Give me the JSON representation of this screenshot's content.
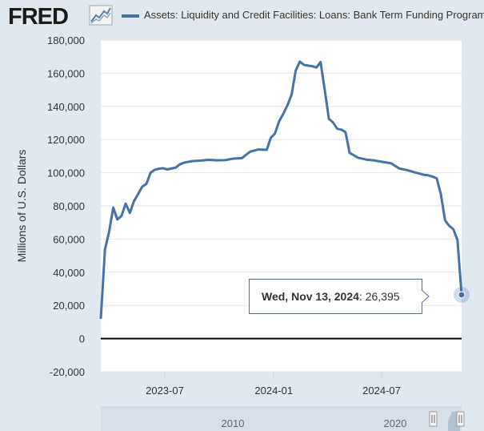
{
  "header": {
    "logo_text": "FRED",
    "logo_icon": "line-chart-icon",
    "series_label": "Assets: Liquidity and Credit Facilities: Loans: Bank Term Funding Program"
  },
  "tooltip": {
    "date": "Wed, Nov 13, 2024",
    "value": "26,395"
  },
  "navigator": {
    "tick_labels": [
      "2010",
      "2020"
    ],
    "handle_icon": "range-handle-icon"
  },
  "colors": {
    "series": "#4572a7",
    "background": "#e1e9f0",
    "plot_background": "#ffffff"
  },
  "chart_data": {
    "type": "line",
    "title": "",
    "xlabel": "",
    "ylabel": "Millions of U.S. Dollars",
    "ylim": [
      -20000,
      180000
    ],
    "yticks": [
      -20000,
      0,
      20000,
      40000,
      60000,
      80000,
      100000,
      120000,
      140000,
      160000,
      180000
    ],
    "ytick_labels": [
      "-20,000",
      "0",
      "20,000",
      "40,000",
      "60,000",
      "80,000",
      "100,000",
      "120,000",
      "140,000",
      "160,000",
      "180,000"
    ],
    "xlim": [
      "2023-03-15",
      "2024-11-13"
    ],
    "xticks": [
      "2023-07-01",
      "2024-01-01",
      "2024-07-01"
    ],
    "xtick_labels": [
      "2023-07",
      "2024-01",
      "2024-07"
    ],
    "grid": true,
    "legend": "top",
    "series": [
      {
        "name": "Assets: Liquidity and Credit Facilities: Loans: Bank Term Funding Program",
        "x": [
          "2023-03-15",
          "2023-03-22",
          "2023-03-29",
          "2023-04-05",
          "2023-04-12",
          "2023-04-19",
          "2023-04-26",
          "2023-05-03",
          "2023-05-10",
          "2023-05-17",
          "2023-05-24",
          "2023-05-31",
          "2023-06-07",
          "2023-06-14",
          "2023-06-21",
          "2023-06-28",
          "2023-07-05",
          "2023-07-12",
          "2023-07-19",
          "2023-07-26",
          "2023-08-02",
          "2023-08-16",
          "2023-08-30",
          "2023-09-13",
          "2023-09-27",
          "2023-10-11",
          "2023-10-25",
          "2023-11-08",
          "2023-11-22",
          "2023-12-06",
          "2023-12-20",
          "2023-12-27",
          "2024-01-03",
          "2024-01-10",
          "2024-01-17",
          "2024-01-24",
          "2024-01-31",
          "2024-02-07",
          "2024-02-14",
          "2024-02-21",
          "2024-02-28",
          "2024-03-06",
          "2024-03-13",
          "2024-03-20",
          "2024-03-27",
          "2024-04-03",
          "2024-04-10",
          "2024-04-17",
          "2024-04-24",
          "2024-05-01",
          "2024-05-08",
          "2024-05-22",
          "2024-06-05",
          "2024-06-19",
          "2024-07-03",
          "2024-07-17",
          "2024-07-31",
          "2024-08-14",
          "2024-08-28",
          "2024-09-11",
          "2024-09-18",
          "2024-09-25",
          "2024-10-02",
          "2024-10-09",
          "2024-10-16",
          "2024-10-23",
          "2024-10-30",
          "2024-11-06",
          "2024-11-13"
        ],
        "values": [
          11900,
          53700,
          64400,
          79000,
          71800,
          74000,
          81300,
          75800,
          82900,
          87200,
          91600,
          93300,
          100000,
          101800,
          102400,
          102700,
          102000,
          102500,
          103000,
          105000,
          106000,
          107000,
          107300,
          107800,
          107500,
          107600,
          108500,
          108800,
          112700,
          114000,
          113800,
          121000,
          123600,
          131000,
          135500,
          140700,
          147000,
          161500,
          167000,
          165000,
          164600,
          164200,
          163500,
          166700,
          150000,
          132500,
          130300,
          126500,
          126000,
          124500,
          112000,
          109100,
          107900,
          107400,
          106500,
          105700,
          102500,
          101500,
          100000,
          98700,
          98400,
          97700,
          96600,
          87000,
          71300,
          68000,
          66000,
          59500,
          26395
        ]
      }
    ]
  }
}
